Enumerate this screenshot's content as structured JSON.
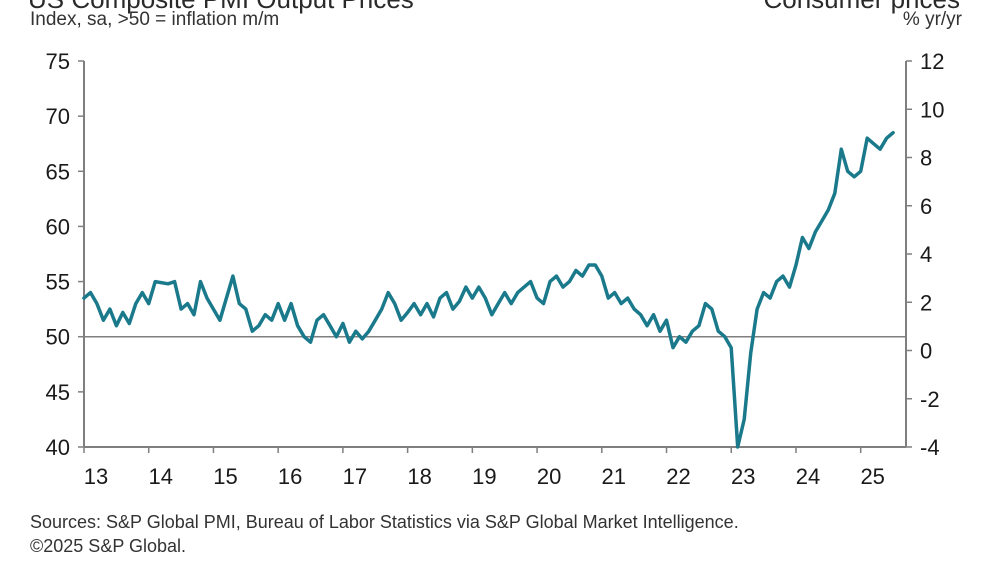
{
  "titles": {
    "left": "US Composite PMI Output Prices",
    "right": "Consumer prices",
    "left_axis_label": "Index, sa, >50 = inflation m/m",
    "right_axis_label": "% yr/yr"
  },
  "footer": {
    "line1": "Sources: S&P Global PMI, Bureau of Labor Statistics via S&P Global Market Intelligence.",
    "line2": "©2025 S&P Global."
  },
  "colors": {
    "pmi": "#1a7a8c",
    "cpi": "#d4881f",
    "axis": "#7f7f7f"
  },
  "chart_data": {
    "type": "line",
    "x_tick_labels": [
      "13",
      "14",
      "15",
      "16",
      "17",
      "18",
      "19",
      "20",
      "21",
      "22",
      "23",
      "24",
      "25"
    ],
    "xlim": [
      2013.0,
      2025.7
    ],
    "left_axis": {
      "ticks": [
        "75",
        "70",
        "65",
        "60",
        "55",
        "50",
        "45",
        "40"
      ],
      "ylim": [
        40,
        75
      ]
    },
    "right_axis": {
      "ticks": [
        "12",
        "10",
        "8",
        "6",
        "4",
        "2",
        "0",
        "-2",
        "-4"
      ],
      "ylim": [
        -4,
        12
      ]
    },
    "series": [
      {
        "name": "US Composite PMI Output Prices",
        "axis": "left",
        "points": [
          [
            2013.0,
            53.5
          ],
          [
            2013.1,
            54.0
          ],
          [
            2013.2,
            53.0
          ],
          [
            2013.3,
            51.5
          ],
          [
            2013.4,
            52.5
          ],
          [
            2013.5,
            51.0
          ],
          [
            2013.6,
            52.2
          ],
          [
            2013.7,
            51.2
          ],
          [
            2013.8,
            53.0
          ],
          [
            2013.9,
            54.0
          ],
          [
            2014.0,
            53.0
          ],
          [
            2014.1,
            55.0
          ],
          [
            2014.3,
            54.8
          ],
          [
            2014.4,
            55.0
          ],
          [
            2014.5,
            52.5
          ],
          [
            2014.6,
            53.0
          ],
          [
            2014.7,
            52.0
          ],
          [
            2014.8,
            55.0
          ],
          [
            2014.9,
            53.5
          ],
          [
            2015.0,
            52.5
          ],
          [
            2015.1,
            51.5
          ],
          [
            2015.2,
            53.5
          ],
          [
            2015.3,
            55.5
          ],
          [
            2015.4,
            53.0
          ],
          [
            2015.5,
            52.5
          ],
          [
            2015.6,
            50.5
          ],
          [
            2015.7,
            51.0
          ],
          [
            2015.8,
            52.0
          ],
          [
            2015.9,
            51.5
          ],
          [
            2016.0,
            53.0
          ],
          [
            2016.1,
            51.5
          ],
          [
            2016.2,
            53.0
          ],
          [
            2016.3,
            51.0
          ],
          [
            2016.4,
            50.0
          ],
          [
            2016.5,
            49.5
          ],
          [
            2016.6,
            51.5
          ],
          [
            2016.7,
            52.0
          ],
          [
            2016.8,
            51.0
          ],
          [
            2016.9,
            50.0
          ],
          [
            2017.0,
            51.2
          ],
          [
            2017.1,
            49.5
          ],
          [
            2017.2,
            50.5
          ],
          [
            2017.3,
            49.8
          ],
          [
            2017.4,
            50.5
          ],
          [
            2017.5,
            51.5
          ],
          [
            2017.6,
            52.5
          ],
          [
            2017.7,
            54.0
          ],
          [
            2017.8,
            53.0
          ],
          [
            2017.9,
            51.5
          ],
          [
            2018.0,
            52.2
          ],
          [
            2018.1,
            53.0
          ],
          [
            2018.2,
            52.0
          ],
          [
            2018.3,
            53.0
          ],
          [
            2018.4,
            51.8
          ],
          [
            2018.5,
            53.5
          ],
          [
            2018.6,
            54.0
          ],
          [
            2018.7,
            52.5
          ],
          [
            2018.8,
            53.2
          ],
          [
            2018.9,
            54.5
          ],
          [
            2019.0,
            53.5
          ],
          [
            2019.1,
            54.5
          ],
          [
            2019.2,
            53.5
          ],
          [
            2019.3,
            52.0
          ],
          [
            2019.4,
            53.0
          ],
          [
            2019.5,
            54.0
          ],
          [
            2019.6,
            53.0
          ],
          [
            2019.7,
            54.0
          ],
          [
            2019.8,
            54.5
          ],
          [
            2019.9,
            55.0
          ],
          [
            2020.0,
            53.5
          ],
          [
            2020.1,
            53.0
          ],
          [
            2020.2,
            55.0
          ],
          [
            2020.3,
            55.5
          ],
          [
            2020.4,
            54.5
          ],
          [
            2020.5,
            55.0
          ],
          [
            2020.6,
            56.0
          ],
          [
            2020.7,
            55.5
          ],
          [
            2020.8,
            56.5
          ],
          [
            2020.9,
            56.5
          ],
          [
            2021.0,
            55.5
          ],
          [
            2021.1,
            53.5
          ],
          [
            2021.2,
            54.0
          ],
          [
            2021.3,
            53.0
          ],
          [
            2021.4,
            53.5
          ],
          [
            2021.5,
            52.5
          ],
          [
            2021.6,
            52.0
          ],
          [
            2021.7,
            51.0
          ],
          [
            2021.8,
            52.0
          ],
          [
            2021.9,
            50.5
          ],
          [
            2022.0,
            51.5
          ],
          [
            2022.1,
            49.0
          ],
          [
            2022.2,
            50.0
          ],
          [
            2022.3,
            49.5
          ],
          [
            2022.4,
            50.5
          ],
          [
            2022.5,
            51.0
          ],
          [
            2022.6,
            53.0
          ],
          [
            2022.7,
            52.5
          ],
          [
            2022.8,
            50.5
          ],
          [
            2022.9,
            50.0
          ],
          [
            2023.0,
            49.0
          ],
          [
            2023.1,
            40.0
          ],
          [
            2023.2,
            42.5
          ],
          [
            2023.3,
            48.5
          ],
          [
            2023.4,
            52.5
          ],
          [
            2023.5,
            54.0
          ],
          [
            2023.6,
            53.5
          ],
          [
            2023.7,
            55.0
          ],
          [
            2023.8,
            55.5
          ],
          [
            2023.9,
            54.5
          ],
          [
            2024.0,
            56.5
          ],
          [
            2024.1,
            59.0
          ],
          [
            2024.2,
            58.0
          ],
          [
            2024.3,
            59.5
          ],
          [
            2024.4,
            60.5
          ],
          [
            2024.5,
            61.5
          ],
          [
            2024.6,
            63.0
          ],
          [
            2024.7,
            67.0
          ],
          [
            2024.8,
            65.0
          ],
          [
            2024.9,
            64.5
          ],
          [
            2025.0,
            65.0
          ],
          [
            2025.1,
            68.0
          ],
          [
            2025.2,
            67.5
          ],
          [
            2025.3,
            67.0
          ],
          [
            2025.4,
            68.0
          ],
          [
            2025.5,
            68.5
          ]
        ]
      }
    ]
  }
}
